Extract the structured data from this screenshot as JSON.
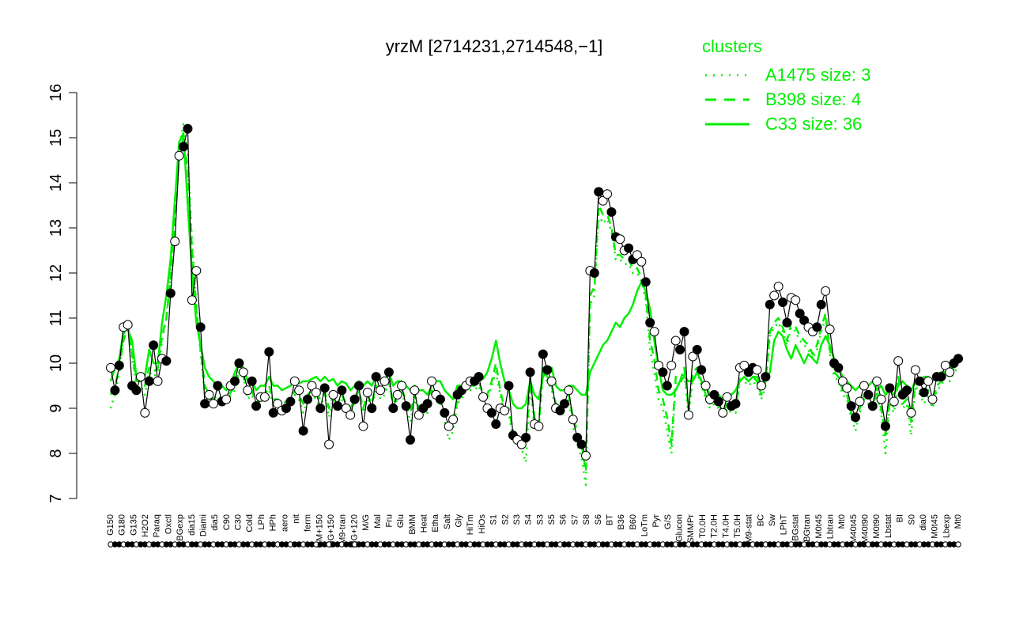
{
  "chart_data": {
    "type": "line",
    "title": "yrzM [2714231,2714548,−1]",
    "xlabel": "",
    "ylabel": "",
    "ylim": [
      7,
      16
    ],
    "yticks": [
      "7",
      "8",
      "9",
      "10",
      "11",
      "12",
      "13",
      "14",
      "15",
      "16"
    ],
    "grid": false,
    "legend": {
      "title": "clusters",
      "placement": "top-right",
      "entries": [
        {
          "label": "A1475 size: 3",
          "style": "dotted"
        },
        {
          "label": "B398 size: 4",
          "style": "dashed"
        },
        {
          "label": "C33 size: 36",
          "style": "solid"
        }
      ]
    },
    "x_labels": [
      "G150",
      "G180",
      "G135",
      "H2O2",
      "Paraq",
      "Oxctl",
      "LBGexp",
      "dia15",
      "Diami",
      "dia5",
      "C90",
      "C30",
      "Cold",
      "LPh",
      "HPh",
      "aero",
      "nit",
      "ferm",
      "GM+150",
      "MG+150",
      "M9-tran",
      "MG+120",
      "M/G",
      "Mal",
      "Fru",
      "Glu",
      "BMM",
      "Heat",
      "Etha",
      "Salt",
      "Gly",
      "HiTm",
      "HiOs",
      "S1",
      "S2",
      "S3",
      "S4",
      "S3",
      "S5",
      "S6",
      "S7",
      "S8",
      "S6",
      "BT",
      "B36",
      "B60",
      "LoTm",
      "Pyr",
      "G/S",
      "Glucon",
      "SMMPr",
      "T0.0H",
      "T2.0H",
      "T4.0H",
      "T5.0H",
      "M9-stat",
      "BC",
      "Sw",
      "LPhT",
      "LBGstat",
      "LBGtran",
      "M0t45",
      "Lbtran",
      "Mt0",
      "M40t45",
      "M40t90",
      "M0t90",
      "Lbstat",
      "BI",
      "S0",
      "dia0",
      "M0t45",
      "Lbexp",
      "Mt0"
    ],
    "series": [
      {
        "name": "",
        "color": "#000000",
        "values": [
          9.9,
          9.4,
          9.95,
          10.8,
          10.85,
          9.5,
          9.4,
          9.7,
          8.9,
          9.6,
          10.4,
          9.6,
          10.1,
          10.05,
          11.55,
          12.7,
          14.6,
          14.8,
          15.2,
          11.4,
          12.05,
          10.8,
          9.1,
          9.3,
          9.1,
          9.5,
          9.15,
          9.2,
          9.5,
          9.6,
          10.0,
          9.8,
          9.4,
          9.6,
          9.05,
          9.25,
          9.25,
          10.25,
          8.9,
          9.1,
          8.95,
          9.0,
          9.15,
          9.6,
          9.4,
          8.5,
          9.2,
          9.5,
          9.35,
          9.0,
          9.45,
          8.2,
          9.3,
          9.05,
          9.4,
          9.0,
          8.85,
          9.2,
          9.5,
          8.6,
          9.35,
          9.0,
          9.7,
          9.4,
          9.6,
          9.8,
          9.0,
          9.3,
          9.5,
          9.05,
          8.3,
          9.4,
          8.85,
          9.0,
          9.1,
          9.6,
          9.3,
          9.2,
          8.9,
          8.6,
          8.75,
          9.3,
          9.4,
          9.5,
          9.6,
          9.6,
          9.7,
          9.25,
          9.0,
          8.9,
          8.65,
          9.0,
          8.95,
          9.5,
          8.4,
          8.3,
          8.2,
          8.35,
          9.8,
          8.65,
          8.6,
          10.2,
          9.85,
          9.6,
          9.0,
          8.95,
          9.1,
          9.4,
          8.75,
          8.35,
          8.2,
          7.95,
          12.05,
          12.0,
          13.8,
          13.6,
          13.75,
          13.35,
          12.8,
          12.75,
          12.5,
          12.55,
          12.3,
          12.4,
          12.25,
          11.8,
          10.9,
          10.7,
          9.95,
          9.8,
          9.5,
          9.95,
          10.5,
          10.3,
          10.7,
          8.85,
          10.15,
          10.3,
          9.85,
          9.5,
          9.2,
          9.3,
          9.15,
          8.9,
          9.25,
          9.05,
          9.1,
          9.9,
          9.95,
          9.8,
          9.9,
          9.85,
          9.5,
          9.7,
          11.3,
          11.5,
          11.7,
          11.35,
          10.9,
          11.45,
          11.4,
          11.1,
          10.95,
          10.8,
          10.7,
          10.8,
          11.3,
          11.6,
          10.75,
          10.0,
          9.9,
          9.6,
          9.45,
          9.05,
          8.8,
          9.15,
          9.5,
          9.3,
          9.05,
          9.6,
          9.2,
          8.6,
          9.45,
          9.15,
          10.05,
          9.3,
          9.4,
          8.9,
          9.85,
          9.6,
          9.35,
          9.6,
          9.2,
          9.7,
          9.7,
          9.95,
          9.8,
          10.0,
          10.1
        ]
      },
      {
        "name": "",
        "color": "#00ee00",
        "style": "solid",
        "values": [
          9.6,
          9.9,
          10.1,
          10.7,
          10.75,
          10.5,
          9.7,
          9.75,
          9.7,
          10.3,
          10.0,
          10.0,
          10.9,
          11.5,
          12.3,
          13.6,
          14.9,
          15.1,
          13.5,
          12.0,
          10.9,
          10.4,
          9.9,
          9.7,
          9.6,
          9.4,
          9.5,
          9.4,
          9.5,
          9.8,
          10.0,
          9.9,
          9.6,
          9.6,
          9.4,
          9.5,
          9.5,
          9.7,
          9.5,
          9.5,
          9.4,
          9.45,
          9.5,
          9.6,
          9.55,
          9.6,
          9.6,
          9.65,
          9.7,
          9.6,
          9.7,
          9.6,
          9.65,
          9.5,
          9.6,
          9.55,
          9.4,
          9.5,
          9.6,
          9.5,
          9.6,
          9.5,
          9.7,
          9.6,
          9.6,
          9.8,
          9.5,
          9.6,
          9.6,
          9.5,
          9.4,
          9.5,
          9.4,
          9.4,
          9.3,
          9.5,
          9.6,
          9.6,
          9.4,
          9.3,
          9.2,
          9.5,
          9.5,
          9.6,
          9.6,
          9.6,
          9.7,
          9.65,
          9.8,
          10.1,
          10.5,
          10.0,
          9.6,
          9.4,
          9.1,
          9.0,
          9.0,
          9.1,
          9.6,
          9.3,
          9.2,
          9.7,
          9.8,
          9.9,
          9.5,
          9.4,
          9.4,
          9.5,
          9.5,
          9.4,
          9.3,
          9.3,
          9.8,
          10.0,
          10.2,
          10.4,
          10.5,
          10.7,
          10.9,
          10.8,
          11.0,
          11.1,
          11.3,
          11.6,
          11.8,
          11.6,
          11.2,
          10.5,
          9.9,
          9.4,
          9.3,
          9.3,
          9.4,
          9.6,
          9.7,
          9.6,
          9.6,
          9.8,
          9.6,
          9.5,
          9.3,
          9.2,
          9.3,
          9.2,
          9.3,
          9.3,
          9.4,
          9.6,
          9.7,
          9.6,
          9.7,
          9.7,
          9.5,
          9.6,
          9.8,
          10.5,
          10.7,
          10.6,
          10.3,
          10.1,
          10.4,
          10.2,
          10.0,
          10.2,
          10.1,
          10.0,
          10.4,
          10.6,
          10.4,
          10.1,
          9.9,
          9.7,
          9.6,
          9.5,
          9.4,
          9.5,
          9.5,
          9.5,
          9.6,
          9.4,
          9.5,
          9.3,
          9.4,
          9.3,
          9.5,
          9.6,
          9.5,
          9.4,
          9.6,
          9.6,
          9.7,
          9.7,
          9.6,
          9.7,
          9.8,
          9.8,
          9.9,
          10.0,
          10.0
        ]
      },
      {
        "name": "",
        "color": "#00ee00",
        "style": "dashed",
        "values": [
          9.3,
          9.5,
          9.9,
          10.5,
          10.8,
          10.2,
          9.6,
          9.6,
          9.5,
          9.9,
          9.8,
          9.9,
          10.6,
          11.0,
          11.9,
          13.1,
          14.6,
          15.0,
          14.3,
          12.5,
          11.2,
          10.3,
          9.5,
          9.3,
          9.2,
          9.3,
          9.2,
          9.2,
          9.35,
          9.5,
          9.8,
          9.7,
          9.3,
          9.4,
          9.1,
          9.3,
          9.3,
          9.5,
          9.2,
          9.2,
          9.1,
          9.15,
          9.2,
          9.4,
          9.3,
          9.1,
          9.3,
          9.4,
          9.3,
          9.2,
          9.35,
          9.0,
          9.3,
          9.1,
          9.3,
          9.1,
          9.0,
          9.2,
          9.4,
          9.0,
          9.3,
          9.1,
          9.5,
          9.3,
          9.4,
          9.6,
          9.1,
          9.3,
          9.4,
          9.2,
          8.9,
          9.3,
          9.0,
          9.0,
          9.0,
          9.4,
          9.3,
          9.2,
          8.9,
          8.6,
          8.6,
          9.2,
          9.3,
          9.4,
          9.5,
          9.5,
          9.6,
          9.3,
          9.3,
          9.6,
          10.0,
          9.4,
          9.0,
          9.0,
          8.5,
          8.4,
          8.3,
          8.3,
          9.6,
          8.8,
          8.6,
          9.9,
          9.7,
          9.5,
          9.1,
          9.0,
          9.1,
          9.3,
          8.8,
          8.5,
          8.2,
          7.6,
          11.5,
          11.7,
          13.5,
          13.3,
          13.3,
          13.0,
          12.4,
          12.4,
          12.3,
          12.3,
          12.1,
          12.1,
          11.9,
          11.5,
          10.5,
          10.1,
          9.4,
          9.2,
          8.8,
          8.2,
          9.7,
          9.6,
          9.9,
          9.0,
          9.8,
          9.9,
          9.6,
          9.3,
          9.1,
          9.2,
          9.1,
          8.9,
          9.1,
          9.0,
          9.0,
          9.7,
          9.7,
          9.6,
          9.7,
          9.6,
          9.3,
          9.6,
          10.7,
          10.9,
          11.0,
          10.8,
          10.5,
          10.9,
          10.8,
          10.6,
          10.5,
          10.4,
          10.2,
          10.4,
          10.8,
          11.1,
          10.3,
          9.8,
          9.7,
          9.4,
          9.3,
          8.9,
          8.7,
          9.0,
          9.3,
          9.2,
          9.0,
          9.4,
          9.0,
          8.4,
          9.2,
          9.0,
          9.7,
          9.1,
          9.2,
          8.7,
          9.6,
          9.4,
          9.2,
          9.4,
          9.1,
          9.5,
          9.6,
          9.8,
          9.7,
          9.9,
          10.0
        ]
      },
      {
        "name": "",
        "color": "#00ee00",
        "style": "dotted",
        "values": [
          9.0,
          9.3,
          9.8,
          10.6,
          10.9,
          10.1,
          9.5,
          9.5,
          9.3,
          9.8,
          9.7,
          9.8,
          10.5,
          11.0,
          12.0,
          13.3,
          14.8,
          15.3,
          14.6,
          12.7,
          11.3,
          10.2,
          9.3,
          9.2,
          9.1,
          9.2,
          9.1,
          9.1,
          9.3,
          9.4,
          9.8,
          9.7,
          9.2,
          9.3,
          9.0,
          9.2,
          9.2,
          9.4,
          9.1,
          9.1,
          9.0,
          9.1,
          9.1,
          9.3,
          9.2,
          8.9,
          9.2,
          9.3,
          9.2,
          9.0,
          9.3,
          8.8,
          9.2,
          9.0,
          9.2,
          9.0,
          8.9,
          9.1,
          9.3,
          8.9,
          9.2,
          9.0,
          9.5,
          9.2,
          9.3,
          9.6,
          9.0,
          9.2,
          9.3,
          9.1,
          8.7,
          9.2,
          8.9,
          8.9,
          8.9,
          9.3,
          9.2,
          9.1,
          8.7,
          8.3,
          8.5,
          9.1,
          9.2,
          9.4,
          9.4,
          9.4,
          9.5,
          9.2,
          9.2,
          9.5,
          9.8,
          9.3,
          8.9,
          8.9,
          8.3,
          8.2,
          8.1,
          7.8,
          9.5,
          8.6,
          8.5,
          9.8,
          9.6,
          9.4,
          9.0,
          8.9,
          9.0,
          9.2,
          8.6,
          8.2,
          7.9,
          7.3,
          11.3,
          11.5,
          13.3,
          13.1,
          13.2,
          12.9,
          12.3,
          12.3,
          12.2,
          12.2,
          12.0,
          12.0,
          11.8,
          11.4,
          10.3,
          9.8,
          9.2,
          9.0,
          8.5,
          8.0,
          9.6,
          9.5,
          9.8,
          8.8,
          9.7,
          9.8,
          9.5,
          9.2,
          9.0,
          9.1,
          9.0,
          8.8,
          9.0,
          8.9,
          8.9,
          9.6,
          9.6,
          9.5,
          9.6,
          9.5,
          9.2,
          9.5,
          10.6,
          10.8,
          10.9,
          10.7,
          10.4,
          10.8,
          10.7,
          10.5,
          10.4,
          10.3,
          10.1,
          10.3,
          10.7,
          11.0,
          10.2,
          9.7,
          9.6,
          9.3,
          9.2,
          8.8,
          8.5,
          8.9,
          9.2,
          9.1,
          8.9,
          9.3,
          8.9,
          8.0,
          9.1,
          8.9,
          9.6,
          9.0,
          9.1,
          8.4,
          9.5,
          9.3,
          9.1,
          9.3,
          9.0,
          9.4,
          9.5,
          9.7,
          9.6,
          9.8,
          9.9
        ]
      }
    ]
  }
}
